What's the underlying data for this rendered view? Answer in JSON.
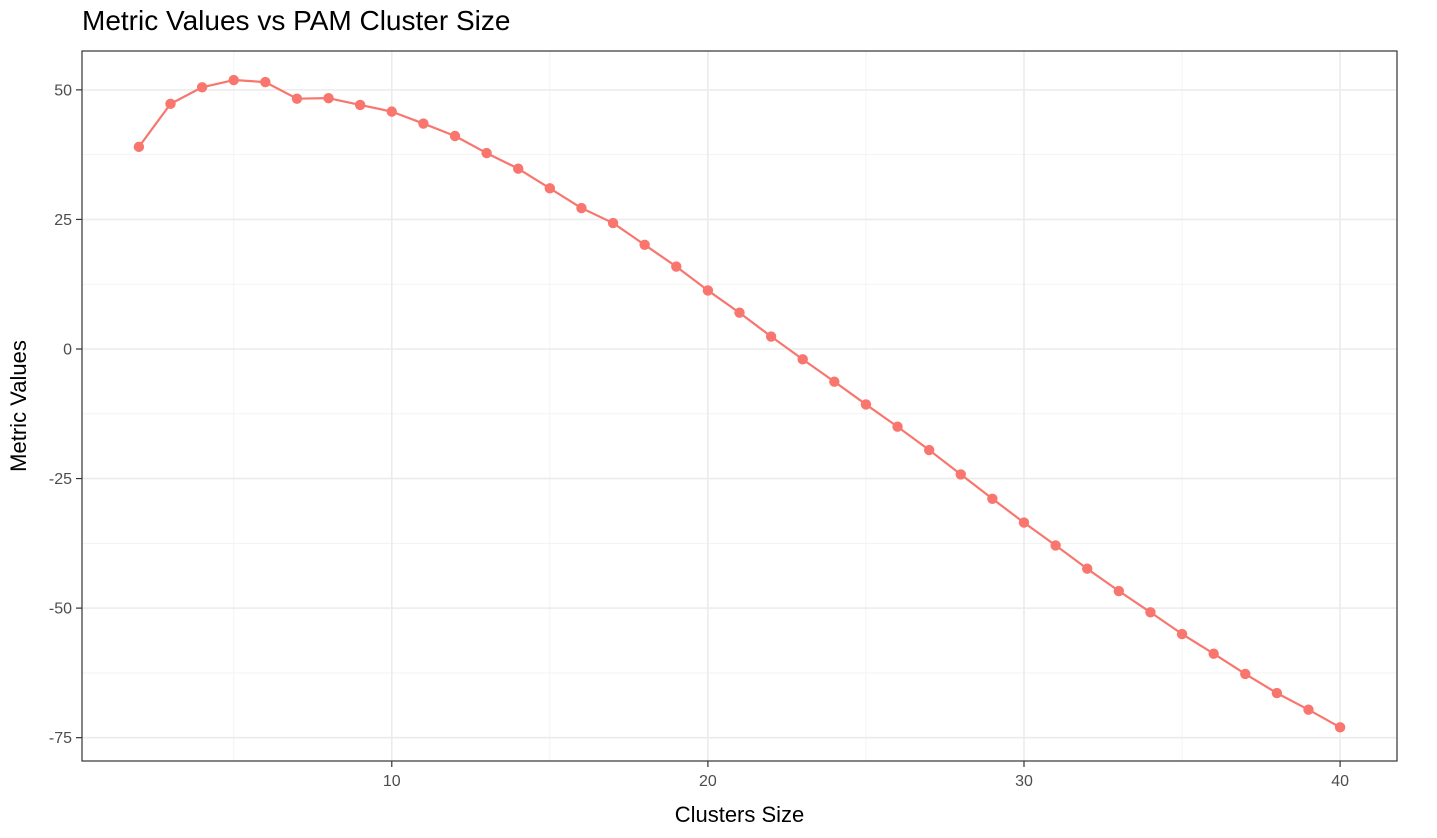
{
  "chart_data": {
    "type": "line",
    "title": "Metric Values vs PAM Cluster Size",
    "xlabel": "Clusters Size",
    "ylabel": "Metric Values",
    "xlim": [
      0.2,
      41.8
    ],
    "ylim": [
      -79.5,
      57.5
    ],
    "x_ticks": [
      10,
      20,
      30,
      40
    ],
    "x_minor_ticks": [
      5,
      15,
      25,
      35
    ],
    "y_ticks": [
      -75,
      -50,
      -25,
      0,
      25,
      50
    ],
    "y_minor_ticks": [
      -62.5,
      -37.5,
      -12.5,
      12.5,
      37.5
    ],
    "grid": true,
    "series": [
      {
        "color": "#F8766D",
        "x": [
          2,
          3,
          4,
          5,
          6,
          7,
          8,
          9,
          10,
          11,
          12,
          13,
          14,
          15,
          16,
          17,
          18,
          19,
          20,
          21,
          22,
          23,
          24,
          25,
          26,
          27,
          28,
          29,
          30,
          31,
          32,
          33,
          34,
          35,
          36,
          37,
          38,
          39,
          40
        ],
        "y": [
          39.0,
          47.3,
          50.5,
          51.9,
          51.5,
          48.3,
          48.4,
          47.1,
          45.8,
          43.5,
          41.1,
          37.8,
          34.8,
          31.0,
          27.2,
          24.3,
          20.1,
          15.9,
          11.3,
          7.0,
          2.4,
          -2.0,
          -6.3,
          -10.7,
          -15.0,
          -19.5,
          -24.2,
          -28.9,
          -33.5,
          -37.9,
          -42.4,
          -46.7,
          -50.8,
          -55.0,
          -58.8,
          -62.7,
          -66.4,
          -69.6,
          -73.0
        ]
      }
    ]
  }
}
